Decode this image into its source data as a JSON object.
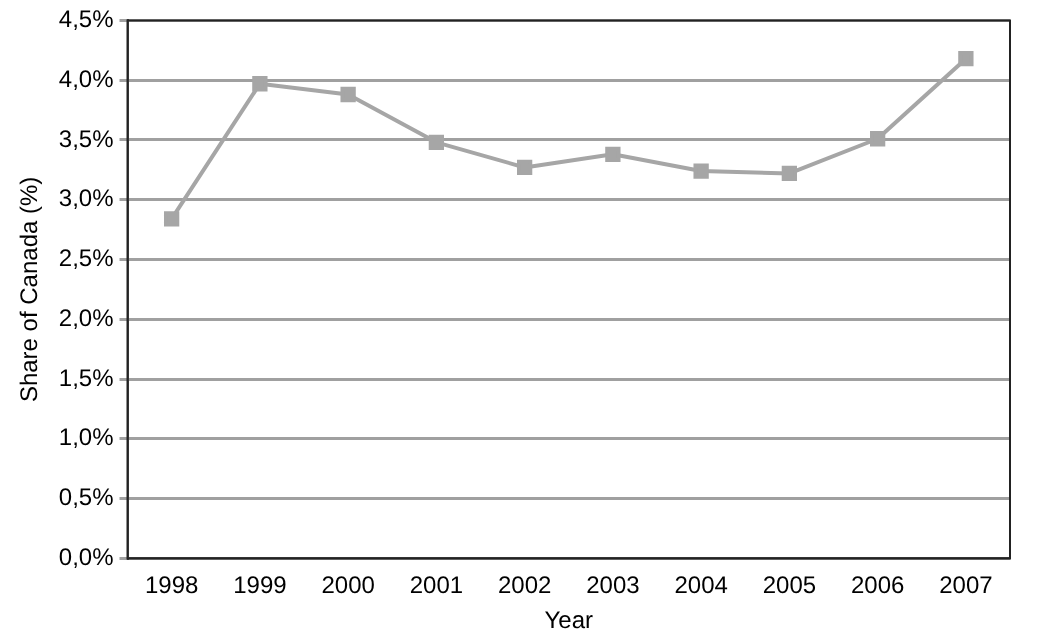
{
  "chart_data": {
    "type": "line",
    "xlabel": "Year",
    "ylabel": "Share of Canada (%)",
    "categories": [
      "1998",
      "1999",
      "2000",
      "2001",
      "2002",
      "2003",
      "2004",
      "2005",
      "2006",
      "2007"
    ],
    "series": [
      {
        "color": "#a6a6a6",
        "values": [
          2.84,
          3.97,
          3.88,
          3.48,
          3.27,
          3.38,
          3.24,
          3.22,
          3.51,
          4.18
        ]
      }
    ],
    "ylim": [
      0,
      4.5
    ],
    "yticks": [
      {
        "value": 0,
        "label": "0,0%"
      },
      {
        "value": 0.5,
        "label": "0,5%"
      },
      {
        "value": 1,
        "label": "1,0%"
      },
      {
        "value": 1.5,
        "label": "1,5%"
      },
      {
        "value": 2,
        "label": "2,0%"
      },
      {
        "value": 2.5,
        "label": "2,5%"
      },
      {
        "value": 3,
        "label": "3,0%"
      },
      {
        "value": 3.5,
        "label": "3,5%"
      },
      {
        "value": 4,
        "label": "4,0%"
      },
      {
        "value": 4.5,
        "label": "4,5%"
      }
    ],
    "grid": "y",
    "legend": false,
    "marker": "square",
    "line_style": "solid"
  }
}
